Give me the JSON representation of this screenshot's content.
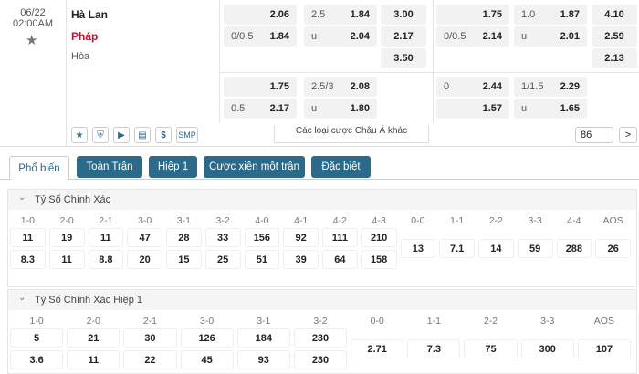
{
  "match": {
    "date": "06/22",
    "time": "02:00AM",
    "home": "Hà Lan",
    "away": "Pháp",
    "draw": "Hòa"
  },
  "markets": [
    {
      "left": [
        {
          "hdp": {
            "odds": "2.06"
          },
          "ou": {
            "line": "2.5",
            "odds": "1.84"
          },
          "x12": "3.00"
        },
        {
          "hdp": {
            "line": "0/0.5",
            "odds": "1.84"
          },
          "ou": {
            "line": "u",
            "odds": "2.04"
          },
          "x12": "2.17"
        },
        {
          "x12": "3.50"
        }
      ],
      "right": [
        {
          "hdp": {
            "odds": "1.75"
          },
          "ou": {
            "line": "1.0",
            "odds": "1.87"
          },
          "x12": "4.10"
        },
        {
          "hdp": {
            "line": "0/0.5",
            "odds": "2.14"
          },
          "ou": {
            "line": "u",
            "odds": "2.01"
          },
          "x12": "2.59"
        },
        {
          "x12": "2.13"
        }
      ]
    },
    {
      "left": [
        {
          "hdp": {
            "odds": "1.75"
          },
          "ou": {
            "line": "2.5/3",
            "odds": "2.08"
          }
        },
        {
          "hdp": {
            "line": "0.5",
            "odds": "2.17"
          },
          "ou": {
            "line": "u",
            "odds": "1.80"
          }
        }
      ],
      "right": [
        {
          "hdp": {
            "line": "0",
            "odds": "2.44"
          },
          "ou": {
            "line": "1/1.5",
            "odds": "2.29"
          }
        },
        {
          "hdp": {
            "odds": "1.57"
          },
          "ou": {
            "line": "u",
            "odds": "1.65"
          }
        }
      ]
    }
  ],
  "toolbar": {
    "currency": "$",
    "smp": "SMP",
    "more": "Các loại cược Châu Á khác",
    "count": "86",
    "next": ">"
  },
  "tabs": {
    "items": [
      "Phổ biến",
      "Toàn Trận",
      "Hiệp 1",
      "Cược xiên một trận",
      "Đặc biệt"
    ],
    "active": 0
  },
  "sections": [
    {
      "title": "Tỷ Số Chính Xác",
      "columns": [
        {
          "score": "1-0",
          "home": "11",
          "away": "8.3"
        },
        {
          "score": "2-0",
          "home": "19",
          "away": "11"
        },
        {
          "score": "2-1",
          "home": "11",
          "away": "8.8"
        },
        {
          "score": "3-0",
          "home": "47",
          "away": "20"
        },
        {
          "score": "3-1",
          "home": "28",
          "away": "15"
        },
        {
          "score": "3-2",
          "home": "33",
          "away": "25"
        },
        {
          "score": "4-0",
          "home": "156",
          "away": "51"
        },
        {
          "score": "4-1",
          "home": "92",
          "away": "39"
        },
        {
          "score": "4-2",
          "home": "111",
          "away": "64"
        },
        {
          "score": "4-3",
          "home": "210",
          "away": "158"
        },
        {
          "score": "0-0",
          "single": "13"
        },
        {
          "score": "1-1",
          "single": "7.1"
        },
        {
          "score": "2-2",
          "single": "14"
        },
        {
          "score": "3-3",
          "single": "59"
        },
        {
          "score": "4-4",
          "single": "288"
        },
        {
          "score": "AOS",
          "single": "26"
        }
      ]
    },
    {
      "title": "Tỷ Số Chính Xác Hiệp 1",
      "columns": [
        {
          "score": "1-0",
          "home": "5",
          "away": "3.6"
        },
        {
          "score": "2-0",
          "home": "21",
          "away": "11"
        },
        {
          "score": "2-1",
          "home": "30",
          "away": "22"
        },
        {
          "score": "3-0",
          "home": "126",
          "away": "45"
        },
        {
          "score": "3-1",
          "home": "184",
          "away": "93"
        },
        {
          "score": "3-2",
          "home": "230",
          "away": "230"
        },
        {
          "score": "0-0",
          "single": "2.71"
        },
        {
          "score": "1-1",
          "single": "7.3"
        },
        {
          "score": "2-2",
          "single": "75"
        },
        {
          "score": "3-3",
          "single": "300"
        },
        {
          "score": "AOS",
          "single": "107"
        }
      ]
    }
  ]
}
